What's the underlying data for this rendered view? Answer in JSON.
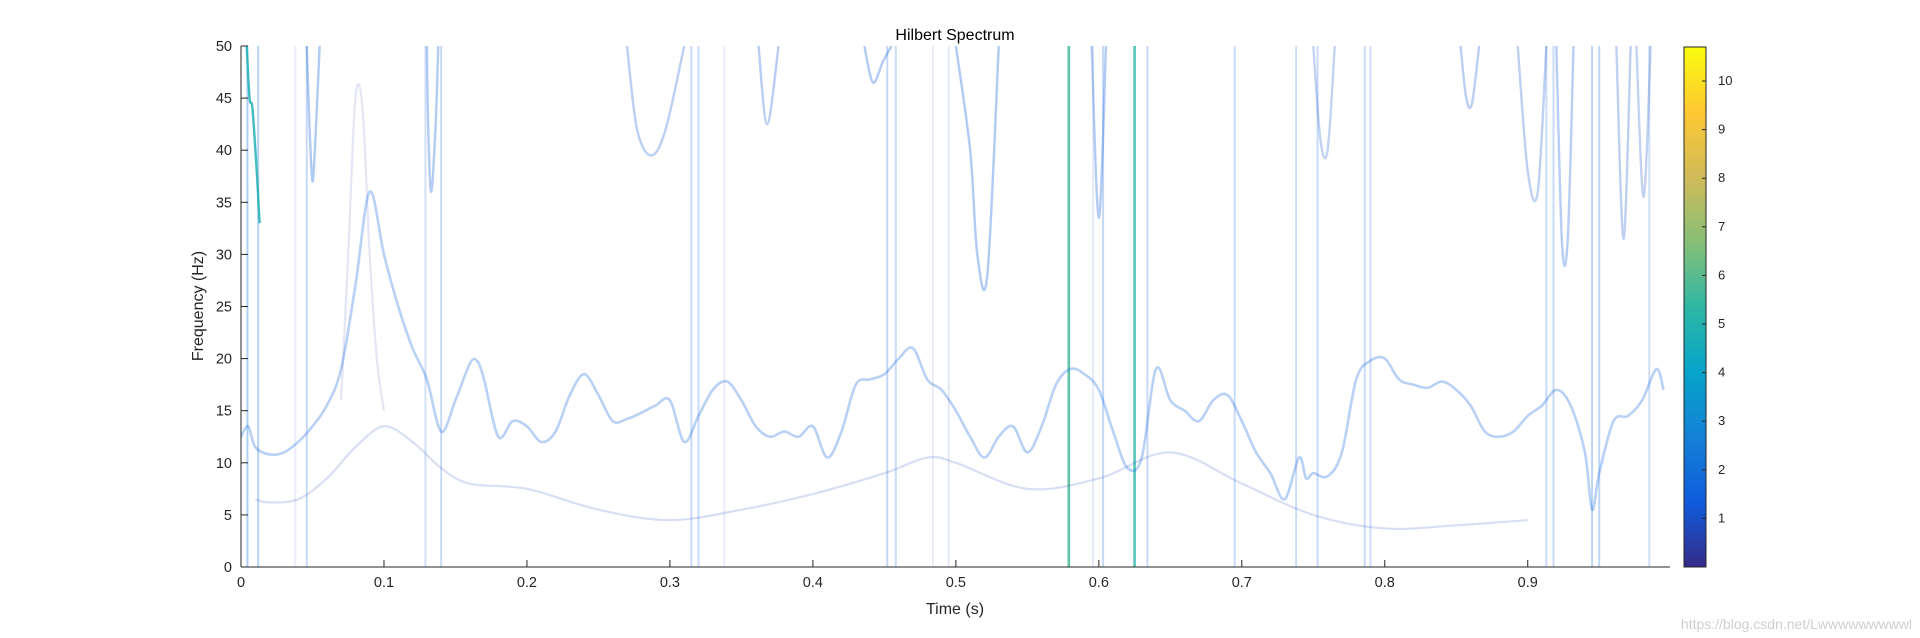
{
  "chart_data": {
    "type": "line",
    "title": "Hilbert Spectrum",
    "xlabel": "Time (s)",
    "ylabel": "Frequency (Hz)",
    "xlim": [
      0,
      1
    ],
    "ylim": [
      0,
      50
    ],
    "xticks": [
      0,
      0.1,
      0.2,
      0.3,
      0.4,
      0.5,
      0.6,
      0.7,
      0.8,
      0.9
    ],
    "xtick_labels": [
      "0",
      "0.1",
      "0.2",
      "0.3",
      "0.4",
      "0.5",
      "0.6",
      "0.7",
      "0.8",
      "0.9"
    ],
    "yticks": [
      0,
      5,
      10,
      15,
      20,
      25,
      30,
      35,
      40,
      45,
      50
    ],
    "ytick_labels": [
      "0",
      "5",
      "10",
      "15",
      "20",
      "25",
      "30",
      "35",
      "40",
      "45",
      "50"
    ],
    "grid": false,
    "colormap": "parula",
    "colorbar": {
      "range": [
        0,
        10.7
      ],
      "ticks": [
        1,
        2,
        3,
        4,
        5,
        6,
        7,
        8,
        9,
        10
      ],
      "tick_labels": [
        "1",
        "2",
        "3",
        "4",
        "5",
        "6",
        "7",
        "8",
        "9",
        "10"
      ],
      "colors": [
        "#352a87",
        "#0f5cdd",
        "#1481d6",
        "#06a4ca",
        "#2eb7a4",
        "#87bf77",
        "#d1bb59",
        "#fec832",
        "#f9fb0e"
      ]
    },
    "series": [
      {
        "amplitude": 1.6,
        "x": [
          0,
          0.005,
          0.01,
          0.02,
          0.03,
          0.04,
          0.05,
          0.06,
          0.07,
          0.08,
          0.09,
          0.1,
          0.11,
          0.12,
          0.13,
          0.14,
          0.15,
          0.16,
          0.165,
          0.17,
          0.18,
          0.19,
          0.2,
          0.21,
          0.22,
          0.23,
          0.24,
          0.25,
          0.26,
          0.27,
          0.28,
          0.29,
          0.3,
          0.31,
          0.32,
          0.33,
          0.34,
          0.35,
          0.36,
          0.37,
          0.38,
          0.39,
          0.4,
          0.41,
          0.42,
          0.43,
          0.44,
          0.45,
          0.46,
          0.47,
          0.48,
          0.49,
          0.5,
          0.51,
          0.52,
          0.53,
          0.54,
          0.55,
          0.56,
          0.57,
          0.58,
          0.59,
          0.6,
          0.61,
          0.62,
          0.63,
          0.64,
          0.65,
          0.66,
          0.67,
          0.68,
          0.69,
          0.7,
          0.71,
          0.72,
          0.73,
          0.74,
          0.745,
          0.75,
          0.76,
          0.77,
          0.78,
          0.79,
          0.8,
          0.81,
          0.82,
          0.83,
          0.84,
          0.85,
          0.86,
          0.87,
          0.88,
          0.89,
          0.9,
          0.91,
          0.92,
          0.93,
          0.94,
          0.945,
          0.95,
          0.96,
          0.97,
          0.98,
          0.99,
          0.995
        ],
        "y": [
          12.5,
          13.5,
          11.5,
          10.8,
          11.0,
          12.0,
          13.5,
          15.5,
          19.0,
          27.0,
          36.0,
          30.0,
          25.0,
          21.0,
          18.0,
          13.0,
          16.0,
          19.5,
          19.8,
          18.0,
          12.5,
          14.0,
          13.5,
          12.0,
          13.0,
          16.5,
          18.5,
          16.5,
          14.0,
          14.2,
          14.8,
          15.5,
          16.0,
          12.0,
          14.5,
          17.0,
          17.8,
          16.0,
          13.5,
          12.5,
          13.0,
          12.5,
          13.5,
          10.5,
          13.0,
          17.5,
          18.0,
          18.5,
          20.0,
          21.0,
          18.0,
          17.0,
          15.0,
          12.5,
          10.5,
          12.5,
          13.5,
          11.0,
          13.5,
          17.5,
          19.0,
          18.5,
          17.0,
          13.0,
          9.5,
          10.5,
          19.0,
          16.0,
          15.0,
          14.0,
          16.0,
          16.5,
          14.0,
          11.0,
          9.0,
          6.5,
          10.5,
          8.5,
          9.0,
          8.7,
          11.0,
          18.0,
          19.8,
          20.0,
          18.0,
          17.5,
          17.2,
          17.8,
          17.0,
          15.5,
          13.0,
          12.5,
          13.0,
          14.5,
          15.5,
          17.0,
          15.5,
          11.0,
          5.5,
          9.0,
          14.0,
          14.5,
          16.0,
          19.0,
          17.0
        ]
      },
      {
        "amplitude": 0.8,
        "x": [
          0.01,
          0.02,
          0.04,
          0.06,
          0.08,
          0.1,
          0.12,
          0.14,
          0.16,
          0.2,
          0.25,
          0.3,
          0.35,
          0.4,
          0.45,
          0.48,
          0.5,
          0.55,
          0.6,
          0.65,
          0.7,
          0.75,
          0.8,
          0.85,
          0.9
        ],
        "y": [
          6.5,
          6.2,
          6.5,
          8.5,
          11.5,
          13.5,
          12.0,
          9.5,
          8.0,
          7.5,
          5.5,
          4.5,
          5.5,
          7.0,
          9.0,
          10.5,
          10.0,
          7.5,
          8.5,
          11.0,
          8.0,
          5.0,
          3.7,
          4.0,
          4.5
        ]
      },
      {
        "amplitude": 0.5,
        "x": [
          0.07,
          0.075,
          0.08,
          0.085,
          0.09,
          0.095,
          0.1
        ],
        "y": [
          16.0,
          30.0,
          45.0,
          44.0,
          30.0,
          20.0,
          15.0
        ]
      }
    ],
    "vertical_lines": [
      {
        "x": 0.0045,
        "amplitude": 2.2
      },
      {
        "x": 0.012,
        "amplitude": 2.0
      },
      {
        "x": 0.038,
        "amplitude": 0.6
      },
      {
        "x": 0.046,
        "amplitude": 1.5
      },
      {
        "x": 0.129,
        "amplitude": 1.2
      },
      {
        "x": 0.14,
        "amplitude": 1.5
      },
      {
        "x": 0.315,
        "amplitude": 1.5
      },
      {
        "x": 0.32,
        "amplitude": 1.4
      },
      {
        "x": 0.338,
        "amplitude": 0.6
      },
      {
        "x": 0.452,
        "amplitude": 1.6
      },
      {
        "x": 0.458,
        "amplitude": 1.4
      },
      {
        "x": 0.484,
        "amplitude": 0.6
      },
      {
        "x": 0.495,
        "amplitude": 0.8
      },
      {
        "x": 0.579,
        "amplitude": 5.7
      },
      {
        "x": 0.596,
        "amplitude": 0.8
      },
      {
        "x": 0.603,
        "amplitude": 1.6
      },
      {
        "x": 0.625,
        "amplitude": 5.2
      },
      {
        "x": 0.634,
        "amplitude": 1.5
      },
      {
        "x": 0.695,
        "amplitude": 1.4
      },
      {
        "x": 0.738,
        "amplitude": 1.4
      },
      {
        "x": 0.753,
        "amplitude": 1.5
      },
      {
        "x": 0.786,
        "amplitude": 1.4
      },
      {
        "x": 0.79,
        "amplitude": 1.3
      },
      {
        "x": 0.913,
        "amplitude": 1.4
      },
      {
        "x": 0.918,
        "amplitude": 1.5
      },
      {
        "x": 0.945,
        "amplitude": 1.8
      },
      {
        "x": 0.95,
        "amplitude": 1.7
      },
      {
        "x": 0.985,
        "amplitude": 1.3
      }
    ],
    "upper_branches": [
      {
        "x": [
          0.004,
          0.006,
          0.008,
          0.011,
          0.013
        ],
        "y": [
          50,
          45,
          44,
          38,
          33
        ],
        "amplitude": 4.8
      },
      {
        "x": [
          0.046,
          0.048,
          0.05,
          0.052,
          0.055
        ],
        "y": [
          50,
          42,
          37,
          41,
          50
        ],
        "amplitude": 1.5
      },
      {
        "x": [
          0.13,
          0.131,
          0.133,
          0.136,
          0.138
        ],
        "y": [
          50,
          42,
          36,
          42,
          50
        ],
        "amplitude": 1.4
      },
      {
        "x": [
          0.27,
          0.277,
          0.287,
          0.297,
          0.31
        ],
        "y": [
          50,
          42,
          39.5,
          42,
          50
        ],
        "amplitude": 1.2
      },
      {
        "x": [
          0.362,
          0.368,
          0.376
        ],
        "y": [
          50,
          42.5,
          50
        ],
        "amplitude": 1.3
      },
      {
        "x": [
          0.436,
          0.442,
          0.449,
          0.455
        ],
        "y": [
          50,
          46.5,
          48.5,
          50
        ],
        "amplitude": 1.4
      },
      {
        "x": [
          0.5,
          0.51,
          0.515,
          0.522,
          0.53
        ],
        "y": [
          50,
          40,
          30,
          28,
          50
        ],
        "amplitude": 1.5
      },
      {
        "x": [
          0.595,
          0.6,
          0.605
        ],
        "y": [
          50,
          33.5,
          50
        ],
        "amplitude": 1.4
      },
      {
        "x": [
          0.75,
          0.755,
          0.76,
          0.765
        ],
        "y": [
          50,
          41,
          40,
          50
        ],
        "amplitude": 1.0
      },
      {
        "x": [
          0.853,
          0.857,
          0.861,
          0.866
        ],
        "y": [
          50,
          45,
          44.5,
          50
        ],
        "amplitude": 1.2
      },
      {
        "x": [
          0.893,
          0.9,
          0.907,
          0.913
        ],
        "y": [
          50,
          38,
          36,
          50
        ],
        "amplitude": 1.1
      },
      {
        "x": [
          0.92,
          0.924,
          0.928,
          0.932
        ],
        "y": [
          50,
          31,
          31.5,
          50
        ],
        "amplitude": 1.3
      },
      {
        "x": [
          0.962,
          0.967,
          0.972
        ],
        "y": [
          50,
          31.5,
          50
        ],
        "amplitude": 1.1
      },
      {
        "x": [
          0.976,
          0.981,
          0.986
        ],
        "y": [
          50,
          35.5,
          50
        ],
        "amplitude": 1.0
      }
    ]
  },
  "watermark": "https://blog.csdn.net/Lwwwwwwwwwl"
}
